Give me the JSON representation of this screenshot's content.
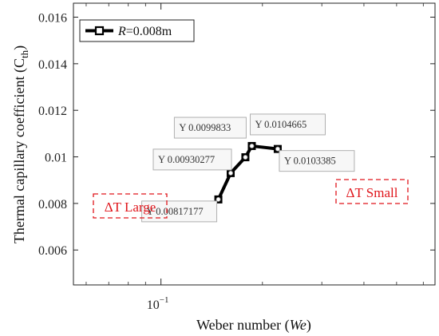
{
  "chart_data": {
    "type": "line",
    "xlabel": "Weber number (We)",
    "xlabel_parts": {
      "main": "Weber number (",
      "italic": "We",
      "close": ")"
    },
    "ylabel": "Thermal capillary coefficient (Cth)",
    "ylabel_parts": {
      "main": "Thermal capillary coefficient (C",
      "sub": "th",
      "close": ")"
    },
    "x_scale": "log",
    "xlim": [
      0.055,
      0.65
    ],
    "ylim": [
      0.0045,
      0.0166
    ],
    "x_ticks": [
      {
        "value": 0.1,
        "base": "10",
        "exp": "−1"
      }
    ],
    "y_ticks": [
      {
        "value": 0.006,
        "label": "0.006"
      },
      {
        "value": 0.008,
        "label": "0.008"
      },
      {
        "value": 0.01,
        "label": "0.01"
      },
      {
        "value": 0.012,
        "label": "0.012"
      },
      {
        "value": 0.014,
        "label": "0.014"
      },
      {
        "value": 0.016,
        "label": "0.016"
      }
    ],
    "grid": false,
    "legend_position": "top-left",
    "series": [
      {
        "name": "R=0.008m",
        "name_parts": {
          "italic": "R",
          "rest": "=0.008m"
        },
        "color": "#000000",
        "marker": "square",
        "x": [
          0.148,
          0.161,
          0.178,
          0.186,
          0.222
        ],
        "y": [
          0.00817177,
          0.00930277,
          0.0099833,
          0.0104665,
          0.0103385
        ]
      }
    ],
    "datatips": [
      {
        "text": "Y 0.00817177",
        "point": 0
      },
      {
        "text": "Y 0.00930277",
        "point": 1
      },
      {
        "text": "Y 0.0099833",
        "point": 2
      },
      {
        "text": "Y 0.0104665",
        "point": 3
      },
      {
        "text": "Y 0.0103385",
        "point": 4
      }
    ],
    "annotations": [
      {
        "text": "ΔT Large",
        "color": "#e0151b"
      },
      {
        "text": "ΔT Small",
        "color": "#e0151b"
      }
    ]
  }
}
